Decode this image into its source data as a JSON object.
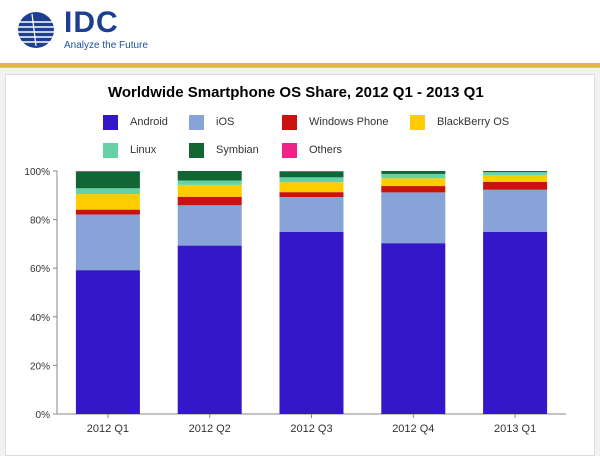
{
  "brand": {
    "logo_text": "IDC",
    "tagline": "Analyze the Future",
    "logo_color": "#1d3f8f"
  },
  "chart_data": {
    "type": "bar",
    "stacked": true,
    "title": "Worldwide Smartphone OS Share, 2012 Q1 - 2013 Q1",
    "xlabel": "",
    "ylabel": "",
    "categories": [
      "2012 Q1",
      "2012 Q2",
      "2012 Q3",
      "2012 Q4",
      "2013 Q1"
    ],
    "y_ticks": [
      "0%",
      "20%",
      "40%",
      "60%",
      "80%",
      "100%"
    ],
    "ylim": [
      0,
      100
    ],
    "grid": false,
    "legend_position": "top",
    "series": [
      {
        "name": "Android",
        "color": "#3317c8",
        "values": [
          59.2,
          69.3,
          74.9,
          70.3,
          75.0
        ]
      },
      {
        "name": "iOS",
        "color": "#88a3d8",
        "values": [
          22.9,
          16.6,
          14.4,
          20.9,
          17.3
        ]
      },
      {
        "name": "Windows Phone",
        "color": "#cc1111",
        "values": [
          2.0,
          3.5,
          2.0,
          2.6,
          3.2
        ]
      },
      {
        "name": "BlackBerry OS",
        "color": "#ffcc00",
        "values": [
          6.4,
          4.9,
          4.1,
          3.2,
          2.9
        ]
      },
      {
        "name": "Linux",
        "color": "#66d1a5",
        "values": [
          2.4,
          1.8,
          2.0,
          1.8,
          1.2
        ]
      },
      {
        "name": "Symbian",
        "color": "#116633",
        "values": [
          6.8,
          3.9,
          2.3,
          1.2,
          0.4
        ]
      },
      {
        "name": "Others",
        "color": "#ee2288",
        "values": [
          0.3,
          0.0,
          0.3,
          0.0,
          0.0
        ]
      }
    ]
  }
}
